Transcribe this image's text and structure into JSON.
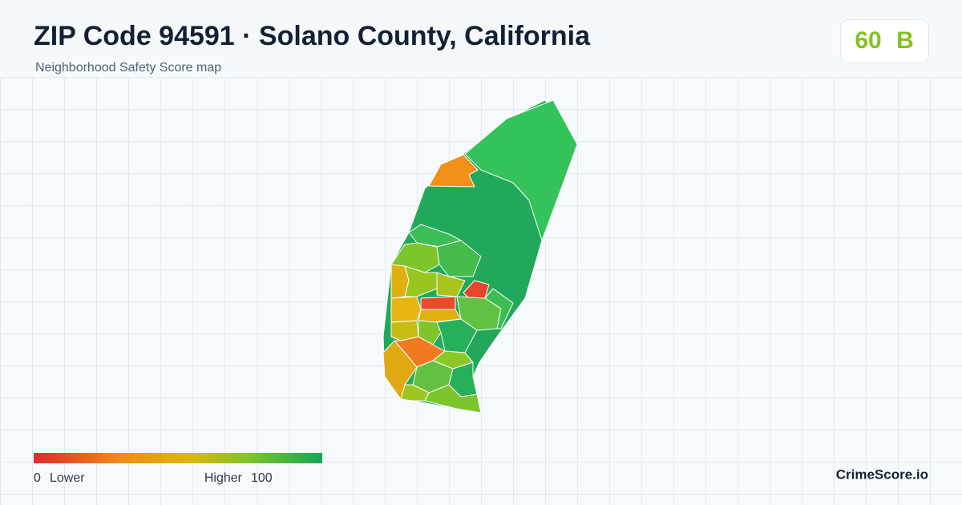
{
  "header": {
    "title": "ZIP Code 94591 · Solano County, California",
    "subtitle": "Neighborhood Safety Score map"
  },
  "score": {
    "value": 60,
    "grade": "B"
  },
  "legend": {
    "min": 0,
    "min_label": "Lower",
    "max_label": "Higher",
    "max": 100
  },
  "brand": "CrimeScore.io"
}
